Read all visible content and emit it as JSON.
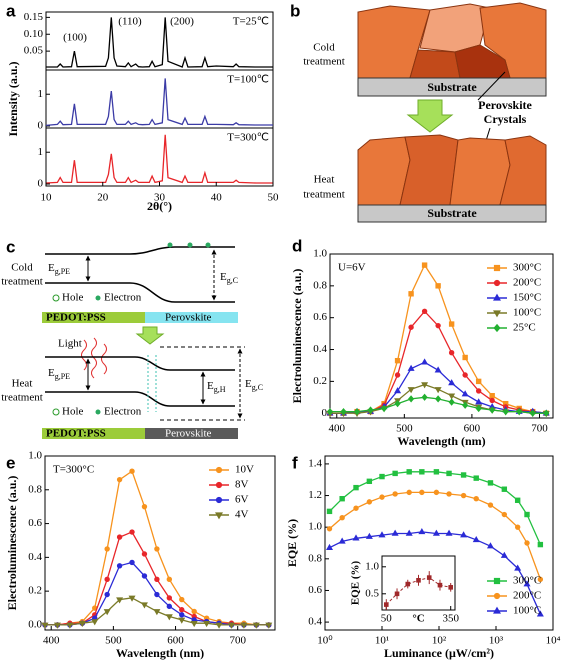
{
  "chart_data": [
    {
      "type": "stacked_line",
      "panel_label": "a",
      "xlabel": "2θ(°)",
      "ylabel": "Intensity (a.u.)",
      "peak_labels": [
        "(100)",
        "(110)",
        "(200)"
      ],
      "x": [
        10,
        12,
        12.5,
        13,
        14.5,
        15,
        15.5,
        20.5,
        21,
        21.5,
        22,
        22.5,
        24,
        24.5,
        25,
        25.8,
        26.3,
        27,
        28.2,
        28.7,
        29.2,
        30.5,
        31,
        31.5,
        34,
        34.5,
        35,
        37.5,
        38,
        38.5,
        40,
        43,
        43.5,
        44,
        47,
        50
      ],
      "xlim": [
        10,
        50
      ],
      "xticks": [
        10,
        20,
        30,
        40,
        50
      ],
      "series": [
        {
          "name": "T=25℃",
          "color": "#000000",
          "ylim": [
            0,
            0.16
          ],
          "yticks": [
            0.05,
            {
              "value": 0.1,
              "label": "0.10"
            },
            0.15
          ],
          "values": [
            0.003,
            0.003,
            0.012,
            0.003,
            0.004,
            0.05,
            0.004,
            0.005,
            0.03,
            0.15,
            0.03,
            0.006,
            0.004,
            0.015,
            0.004,
            0.012,
            0.004,
            0.003,
            0.004,
            0.02,
            0.004,
            0.01,
            0.15,
            0.02,
            0.003,
            0.03,
            0.003,
            0.004,
            0.03,
            0.004,
            0.006,
            0.004,
            0.012,
            0.004,
            0.003,
            0.003
          ]
        },
        {
          "name": "T=100℃",
          "color": "#3b3ba6",
          "ylim": [
            0,
            1.7
          ],
          "yticks": [
            0,
            1
          ],
          "values": [
            0.02,
            0.05,
            0.15,
            0.04,
            0.05,
            0.7,
            0.05,
            0.05,
            0.3,
            1.1,
            0.2,
            0.05,
            0.05,
            0.15,
            0.05,
            0.1,
            0.05,
            0.04,
            0.05,
            0.2,
            0.05,
            0.1,
            1.5,
            0.2,
            0.05,
            0.25,
            0.05,
            0.05,
            0.3,
            0.05,
            0.05,
            0.04,
            0.1,
            0.04,
            0.03,
            0.03
          ]
        },
        {
          "name": "T=300℃",
          "color": "#e8262a",
          "ylim": [
            0,
            1.7
          ],
          "yticks": [
            0,
            1
          ],
          "values": [
            0.03,
            0.05,
            0.2,
            0.05,
            0.05,
            0.75,
            0.05,
            0.05,
            0.3,
            0.95,
            0.2,
            0.05,
            0.05,
            0.2,
            0.05,
            0.12,
            0.05,
            0.05,
            0.05,
            0.25,
            0.05,
            0.1,
            1.55,
            0.2,
            0.05,
            0.25,
            0.05,
            0.05,
            0.35,
            0.05,
            0.05,
            0.05,
            0.12,
            0.05,
            0.03,
            0.03
          ]
        }
      ]
    },
    {
      "type": "line",
      "panel_label": "d",
      "annotation": "U=6V",
      "xlabel": "Wavelength (nm)",
      "ylabel": "Electroluminescence (a.u.)",
      "x": [
        390,
        410,
        430,
        450,
        470,
        490,
        510,
        530,
        550,
        570,
        590,
        610,
        630,
        650,
        670,
        690,
        710
      ],
      "xlim": [
        390,
        720
      ],
      "xticks": [
        400,
        500,
        600,
        700
      ],
      "ylim": [
        -0.03,
        1.0
      ],
      "yticks": [
        0,
        0.2,
        0.4,
        0.6,
        0.8,
        {
          "value": 1,
          "label": "1.0"
        }
      ],
      "legend": "upper right",
      "series": [
        {
          "name": "300°C",
          "color": "#f7931e",
          "marker": "square",
          "values": [
            0,
            0,
            0.01,
            0.01,
            0.06,
            0.33,
            0.75,
            0.93,
            0.8,
            0.56,
            0.35,
            0.2,
            0.11,
            0.06,
            0.03,
            0.01,
            0
          ]
        },
        {
          "name": "200°C",
          "color": "#e8262a",
          "marker": "circle",
          "values": [
            0,
            0,
            0.01,
            0.01,
            0.05,
            0.24,
            0.54,
            0.64,
            0.55,
            0.38,
            0.24,
            0.14,
            0.08,
            0.04,
            0.02,
            0.01,
            0
          ]
        },
        {
          "name": "150°C",
          "color": "#2b2bd6",
          "marker": "triangle",
          "values": [
            0,
            0,
            0.01,
            0.01,
            0.04,
            0.14,
            0.28,
            0.32,
            0.27,
            0.19,
            0.12,
            0.07,
            0.04,
            0.02,
            0.01,
            0.01,
            0
          ]
        },
        {
          "name": "100°C",
          "color": "#7a7a28",
          "marker": "triangle-down",
          "values": [
            0,
            0,
            0,
            0.01,
            0.03,
            0.08,
            0.15,
            0.18,
            0.15,
            0.11,
            0.07,
            0.04,
            0.02,
            0.01,
            0.01,
            0,
            0
          ]
        },
        {
          "name": "25°C",
          "color": "#22b030",
          "marker": "diamond",
          "values": [
            0.01,
            0.01,
            0.01,
            0.02,
            0.03,
            0.06,
            0.09,
            0.1,
            0.09,
            0.07,
            0.05,
            0.03,
            0.02,
            0.01,
            0.01,
            0,
            0
          ]
        }
      ]
    },
    {
      "type": "line",
      "panel_label": "e",
      "annotation": "T=300°C",
      "xlabel": "Wavelength (nm)",
      "ylabel": "Electroluminescence (a.u.)",
      "x": [
        390,
        410,
        430,
        450,
        470,
        490,
        510,
        530,
        550,
        570,
        590,
        610,
        630,
        650,
        670,
        690,
        710,
        730,
        750
      ],
      "xlim": [
        390,
        760
      ],
      "xticks": [
        400,
        500,
        600,
        700
      ],
      "ylim": [
        -0.03,
        1.0
      ],
      "yticks": [
        {
          "value": 0,
          "label": "0.0"
        },
        0.2,
        0.4,
        0.6,
        0.8,
        {
          "value": 1,
          "label": "1.0"
        }
      ],
      "legend": "upper right",
      "series": [
        {
          "name": "10V",
          "color": "#f7931e",
          "marker": "circle",
          "values": [
            0,
            0,
            0.01,
            0.02,
            0.1,
            0.45,
            0.86,
            0.91,
            0.7,
            0.45,
            0.27,
            0.15,
            0.08,
            0.04,
            0.02,
            0.01,
            0.01,
            0,
            0
          ]
        },
        {
          "name": "8V",
          "color": "#e8262a",
          "marker": "circle",
          "values": [
            0,
            0,
            0.01,
            0.01,
            0.06,
            0.27,
            0.52,
            0.55,
            0.42,
            0.27,
            0.16,
            0.09,
            0.05,
            0.02,
            0.01,
            0.01,
            0,
            0,
            0
          ]
        },
        {
          "name": "6V",
          "color": "#2b2bd6",
          "marker": "circle",
          "values": [
            0,
            0,
            0,
            0.01,
            0.04,
            0.18,
            0.35,
            0.37,
            0.29,
            0.18,
            0.11,
            0.06,
            0.03,
            0.02,
            0.01,
            0,
            0,
            0,
            0
          ]
        },
        {
          "name": "4V",
          "color": "#7a7a28",
          "marker": "triangle-down",
          "values": [
            0,
            0,
            0,
            0.01,
            0.02,
            0.08,
            0.15,
            0.16,
            0.12,
            0.08,
            0.05,
            0.03,
            0.01,
            0.01,
            0,
            0,
            0,
            0,
            0
          ]
        }
      ]
    },
    {
      "type": "line",
      "panel_label": "f",
      "xscale": "log",
      "xlabel": "Luminance (μW/cm²)",
      "ylabel": "EQE (%)",
      "x": [
        1.2,
        2,
        3.5,
        6,
        10,
        17,
        30,
        50,
        90,
        150,
        270,
        450,
        800,
        1400,
        2400,
        3500,
        6000
      ],
      "xlim": [
        1,
        10000
      ],
      "xticks": [
        {
          "value": 1,
          "label": "10⁰"
        },
        {
          "value": 10,
          "label": "10¹"
        },
        {
          "value": 100,
          "label": "10²"
        },
        {
          "value": 1000,
          "label": "10³"
        },
        {
          "value": 10000,
          "label": "10⁴"
        }
      ],
      "ylim": [
        0.35,
        1.45
      ],
      "yticks": [
        0.4,
        0.6,
        0.8,
        {
          "value": 1,
          "label": "1.0"
        },
        1.2,
        1.4
      ],
      "legend": "lower right",
      "series": [
        {
          "name": "300°C",
          "color": "#22c040",
          "marker": "square",
          "values": [
            1.1,
            1.18,
            1.25,
            1.29,
            1.32,
            1.34,
            1.35,
            1.35,
            1.35,
            1.34,
            1.33,
            1.31,
            1.28,
            1.24,
            1.17,
            1.08,
            0.89
          ]
        },
        {
          "name": "200°C",
          "color": "#f7931e",
          "marker": "circle",
          "values": [
            0.99,
            1.06,
            1.12,
            1.16,
            1.19,
            1.21,
            1.22,
            1.22,
            1.22,
            1.21,
            1.2,
            1.18,
            1.14,
            1.08,
            1.0,
            0.9,
            0.67
          ]
        },
        {
          "name": "100°C",
          "color": "#2b2bd6",
          "marker": "triangle",
          "values": [
            0.87,
            0.91,
            0.93,
            0.94,
            0.95,
            0.96,
            0.96,
            0.97,
            0.96,
            0.96,
            0.95,
            0.92,
            0.88,
            0.82,
            0.74,
            0.64,
            0.45
          ]
        }
      ],
      "inset": {
        "type": "errorbar",
        "xlabel": "°C",
        "ylabel": "EQE (%)",
        "color": "#a0282a",
        "x": [
          50,
          100,
          150,
          200,
          250,
          300,
          350
        ],
        "values": [
          0.3,
          0.5,
          0.68,
          0.75,
          0.8,
          0.66,
          0.62
        ],
        "errors": [
          0.1,
          0.1,
          0.08,
          0.1,
          0.12,
          0.1,
          0.08
        ],
        "xlim": [
          30,
          370
        ],
        "xticks": [
          50,
          350
        ],
        "ylim": [
          0.2,
          1.2
        ],
        "yticks": [
          0.5,
          {
            "value": 1,
            "label": "1.0"
          }
        ]
      }
    }
  ],
  "diagrams": {
    "b": {
      "panel_label": "b",
      "cold_treatment": [
        "Cold",
        "treatment"
      ],
      "substrate_top": "Substrate",
      "perovskite_crystals": [
        "Perovskite",
        "Crystals"
      ],
      "heat_treatment": [
        "Heat",
        "treatment"
      ],
      "substrate_bottom": "Substrate"
    },
    "c": {
      "panel_label": "c",
      "cold_treatment": [
        "Cold",
        "treatment"
      ],
      "eg_pe_cold": {
        "main": "E",
        "sub": "g,PE"
      },
      "eg_c_cold": {
        "main": "E",
        "sub": "g,C"
      },
      "hole_cold": "Hole",
      "electron_cold": "Electron",
      "pedot_cold": "PEDOT:PSS",
      "perovskite_cold": "Perovskite",
      "light": "Light",
      "eg_pe_heat": {
        "main": "E",
        "sub": "g,PE"
      },
      "eg_h_heat": {
        "main": "E",
        "sub": "g,H"
      },
      "eg_c_heat": {
        "main": "E",
        "sub": "g,C"
      },
      "heat_treatment": [
        "Heat",
        "treatment"
      ],
      "hole_heat": "Hole",
      "electron_heat": "Electron",
      "pedot_heat": "PEDOT:PSS",
      "perovskite_heat": "Perovskite"
    }
  }
}
